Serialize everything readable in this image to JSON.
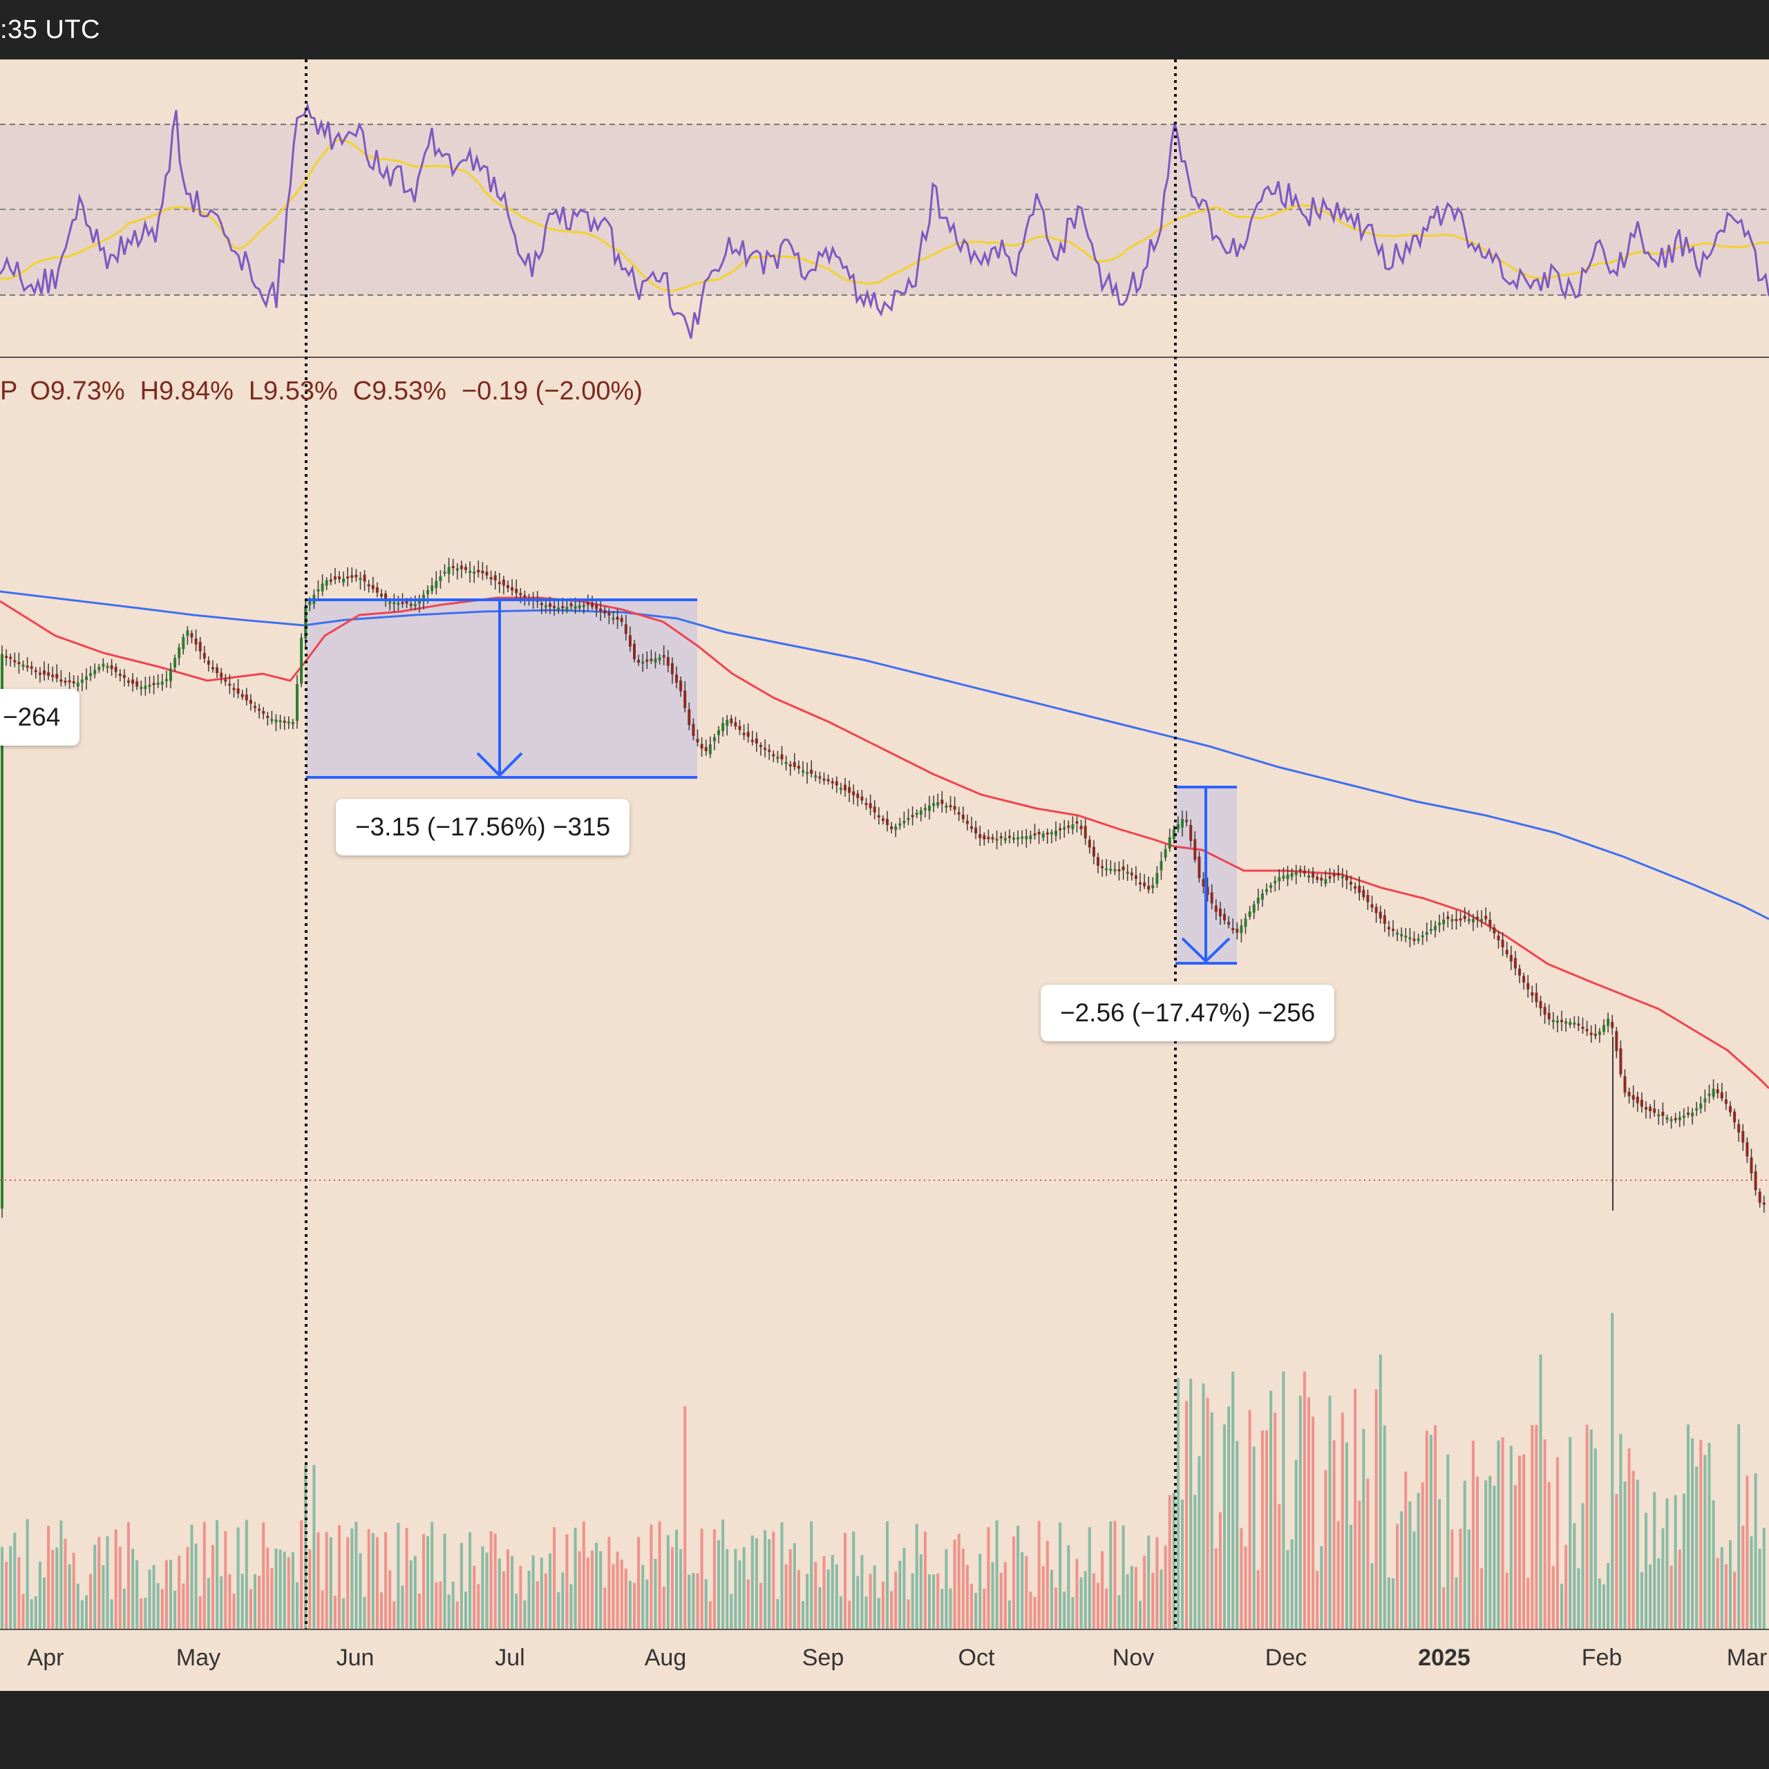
{
  "header": {
    "time_fragment": ":35 UTC"
  },
  "ohlc": {
    "prefix": "P",
    "open": "O9.73%",
    "high": "H9.84%",
    "low": "L9.53%",
    "close": "C9.53%",
    "change": "−0.19 (−2.00%)"
  },
  "measures": {
    "left_partial": "−264",
    "first": "−3.15 (−17.56%) −315",
    "second": "−2.56 (−17.47%) −256"
  },
  "colors": {
    "background": "#f2e0d0",
    "rsi_band": "#e4d3d0",
    "rsi_line": "#7e57c2",
    "rsi_ma": "#f2d22e",
    "ma_red": "#f0434f",
    "ma_blue": "#3d6ff0",
    "measure_blue": "#2962ff",
    "candle_up": "#2e7d32",
    "candle_down": "#8b2a22",
    "vol_up": "#88bba6",
    "vol_down": "#ee938b"
  },
  "chart_data": {
    "type": "candlestick",
    "x_axis_labels": [
      "Apr",
      "May",
      "Jun",
      "Jul",
      "Aug",
      "Sep",
      "Oct",
      "Nov",
      "Dec",
      "2025",
      "Feb",
      "Mar"
    ],
    "x_axis_bold": [
      "2025"
    ],
    "last_ohlc": {
      "open": 9.73,
      "high": 9.84,
      "low": 9.53,
      "close": 9.53,
      "change": -0.19,
      "change_pct": -2.0
    },
    "annotations": [
      {
        "label": "−3.15 (−17.56%) −315",
        "change": -3.15,
        "change_pct": -17.56,
        "ticks": -315
      },
      {
        "label": "−2.56 (−17.47%) −256",
        "change": -2.56,
        "change_pct": -17.47,
        "ticks": -256
      },
      {
        "label": "−264"
      }
    ],
    "panes": [
      "RSI with moving average",
      "Price candles with moving averages",
      "Volume"
    ],
    "grid": false
  }
}
